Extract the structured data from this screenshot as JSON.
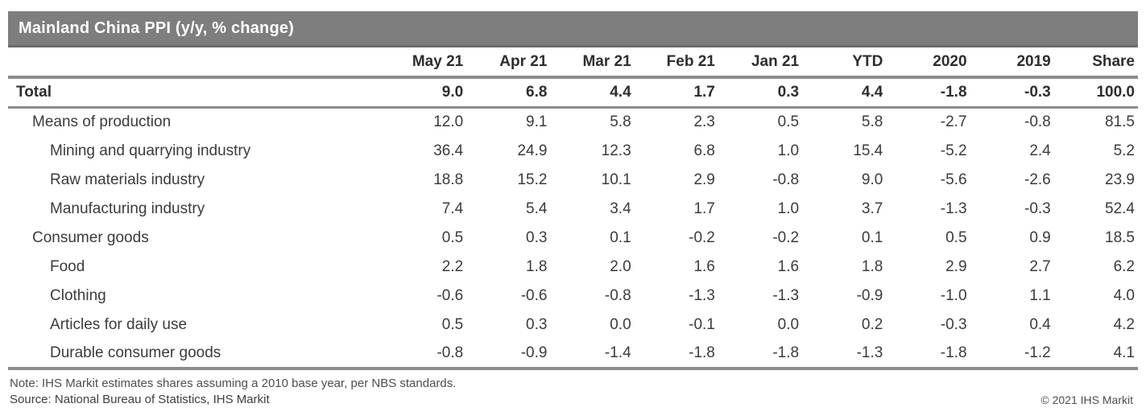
{
  "title": "Mainland China PPI (y/y, % change)",
  "colors": {
    "title_bar_bg": "#7e7e7e",
    "title_bar_text": "#ffffff",
    "rule_gray": "#8c8c8c",
    "body_text": "#3b3b3b"
  },
  "chart_data": {
    "type": "table",
    "title": "Mainland China PPI (y/y, % change)",
    "columns": [
      "May 21",
      "Apr 21",
      "Mar 21",
      "Feb 21",
      "Jan 21",
      "YTD",
      "2020",
      "2019",
      "Share"
    ],
    "rows": [
      {
        "label": "Total",
        "indent": 0,
        "bold": true,
        "total_rule": true,
        "values": [
          "9.0",
          "6.8",
          "4.4",
          "1.7",
          "0.3",
          "4.4",
          "-1.8",
          "-0.3",
          "100.0"
        ]
      },
      {
        "label": "Means of production",
        "indent": 1,
        "bold": false,
        "values": [
          "12.0",
          "9.1",
          "5.8",
          "2.3",
          "0.5",
          "5.8",
          "-2.7",
          "-0.8",
          "81.5"
        ]
      },
      {
        "label": "Mining and quarrying industry",
        "indent": 2,
        "bold": false,
        "values": [
          "36.4",
          "24.9",
          "12.3",
          "6.8",
          "1.0",
          "15.4",
          "-5.2",
          "2.4",
          "5.2"
        ]
      },
      {
        "label": "Raw materials industry",
        "indent": 2,
        "bold": false,
        "values": [
          "18.8",
          "15.2",
          "10.1",
          "2.9",
          "-0.8",
          "9.0",
          "-5.6",
          "-2.6",
          "23.9"
        ]
      },
      {
        "label": "Manufacturing industry",
        "indent": 2,
        "bold": false,
        "values": [
          "7.4",
          "5.4",
          "3.4",
          "1.7",
          "1.0",
          "3.7",
          "-1.3",
          "-0.3",
          "52.4"
        ]
      },
      {
        "label": "Consumer goods",
        "indent": 1,
        "bold": false,
        "values": [
          "0.5",
          "0.3",
          "0.1",
          "-0.2",
          "-0.2",
          "0.1",
          "0.5",
          "0.9",
          "18.5"
        ]
      },
      {
        "label": "Food",
        "indent": 2,
        "bold": false,
        "values": [
          "2.2",
          "1.8",
          "2.0",
          "1.6",
          "1.6",
          "1.8",
          "2.9",
          "2.7",
          "6.2"
        ]
      },
      {
        "label": "Clothing",
        "indent": 2,
        "bold": false,
        "values": [
          "-0.6",
          "-0.6",
          "-0.8",
          "-1.3",
          "-1.3",
          "-0.9",
          "-1.0",
          "1.1",
          "4.0"
        ]
      },
      {
        "label": "Articles for daily use",
        "indent": 2,
        "bold": false,
        "values": [
          "0.5",
          "0.3",
          "0.0",
          "-0.1",
          "0.0",
          "0.2",
          "-0.3",
          "0.4",
          "4.2"
        ]
      },
      {
        "label": "Durable consumer goods",
        "indent": 2,
        "bold": false,
        "values": [
          "-0.8",
          "-0.9",
          "-1.4",
          "-1.8",
          "-1.8",
          "-1.3",
          "-1.8",
          "-1.2",
          "4.1"
        ]
      }
    ]
  },
  "footer": {
    "note": "Note: IHS Markit estimates shares assuming a 2010 base year, per NBS standards.",
    "source": "Source: National Bureau of Statistics, IHS Markit",
    "copyright": "© 2021 IHS Markit"
  }
}
